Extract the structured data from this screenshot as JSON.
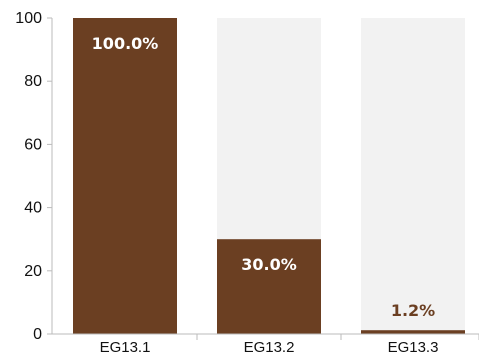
{
  "chart_data": {
    "type": "bar",
    "categories": [
      "EG13.1",
      "EG13.2",
      "EG13.3"
    ],
    "values": [
      100.0,
      30.0,
      1.2
    ],
    "data_labels": [
      "100.0%",
      "30.0%",
      "1.2%"
    ],
    "title": "",
    "xlabel": "",
    "ylabel": "",
    "ylim": [
      0,
      100
    ],
    "yticks": [
      "0",
      "20",
      "40",
      "60",
      "80",
      "100"
    ],
    "grid": false,
    "legend": "none",
    "colors": {
      "bar": "#6b3f22",
      "background_bar": "#f2f2f2",
      "label_inside": "#ffffff",
      "label_outside": "#6b3f22",
      "axis": "#bbbbbb"
    }
  }
}
